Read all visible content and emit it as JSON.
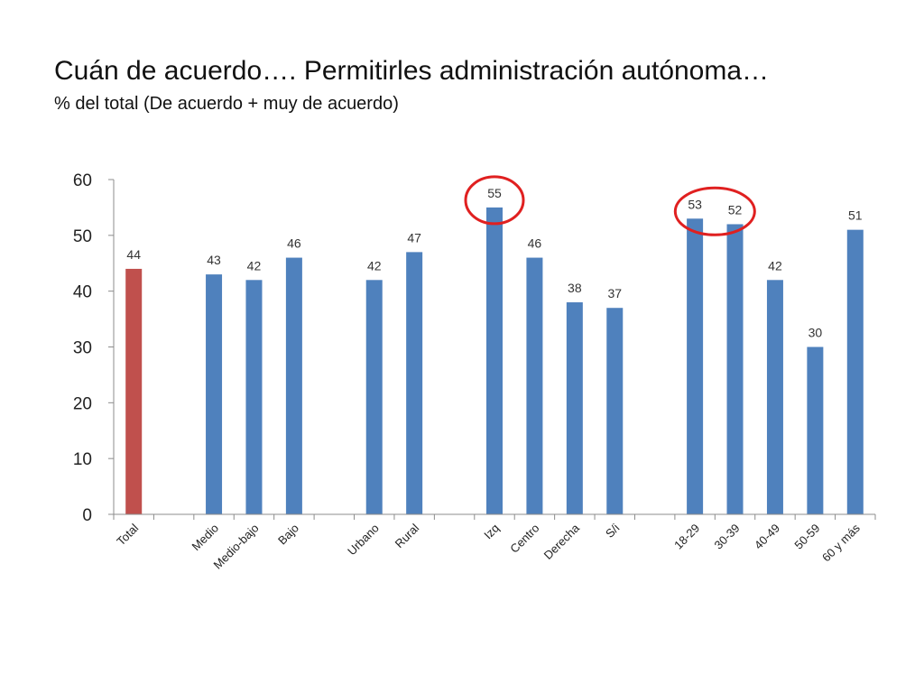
{
  "title": "Cuán de acuerdo…. Permitirles administración autónoma…",
  "subtitle": "% del total (De acuerdo + muy de acuerdo)",
  "colors": {
    "total": "#c0504d",
    "default": "#4f81bd",
    "highlight": "#e02020",
    "axis": "#8c8c8c"
  },
  "chart_data": {
    "type": "bar",
    "title": "Cuán de acuerdo…. Permitirles administración autónoma…",
    "subtitle": "% del total (De acuerdo + muy de acuerdo)",
    "xlabel": "",
    "ylabel": "",
    "ylim": [
      0,
      60
    ],
    "yticks": [
      0,
      10,
      20,
      30,
      40,
      50,
      60
    ],
    "grid": false,
    "legend": "none",
    "categories": [
      "Total",
      "",
      "Medio",
      "Medio-bajo",
      "Bajo",
      "",
      "Urbano",
      "Rural",
      "",
      "Izq",
      "Centro",
      "Derecha",
      "S/i",
      "",
      "18-29",
      "30-39",
      "40-49",
      "50-59",
      "60 y más"
    ],
    "values": [
      44,
      null,
      43,
      42,
      46,
      null,
      42,
      47,
      null,
      55,
      46,
      38,
      37,
      null,
      53,
      52,
      42,
      30,
      51
    ],
    "bar_colors": [
      "total",
      null,
      "default",
      "default",
      "default",
      null,
      "default",
      "default",
      null,
      "default",
      "default",
      "default",
      "default",
      null,
      "default",
      "default",
      "default",
      "default",
      "default"
    ],
    "highlighted": [
      "Izq",
      "18-29",
      "30-39"
    ]
  }
}
